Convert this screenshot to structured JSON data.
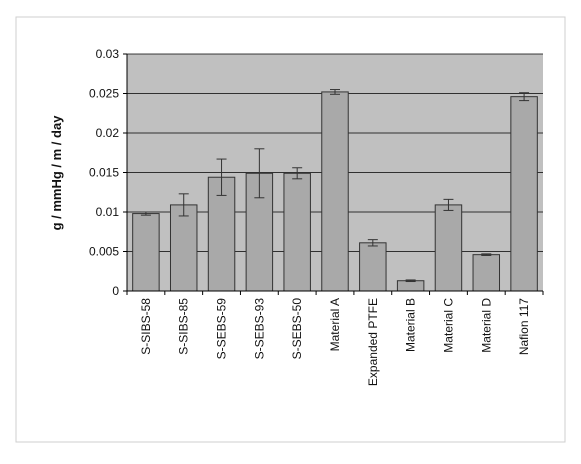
{
  "chart_data": {
    "type": "bar",
    "title": "",
    "xlabel": "",
    "ylabel": "g / mmHg / m / day",
    "ylim": [
      0,
      0.03
    ],
    "yticks": [
      0,
      0.005,
      0.01,
      0.015,
      0.02,
      0.025,
      0.03
    ],
    "ytick_labels": [
      "0",
      "0.005",
      "0.01",
      "0.015",
      "0.02",
      "0.025",
      "0.03"
    ],
    "grid": "horizontal",
    "legend": "none",
    "categories": [
      "S-SIBS-58",
      "S-SIBS-85",
      "S-SEBS-59",
      "S-SEBS-93",
      "S-SEBS-50",
      "Material A",
      "Expanded PTFE",
      "Material B",
      "Material C",
      "Material D",
      "Nafion 117"
    ],
    "values": [
      0.0098,
      0.0109,
      0.0144,
      0.0149,
      0.0149,
      0.0252,
      0.0061,
      0.0013,
      0.0109,
      0.0046,
      0.0246
    ],
    "errors": [
      0.0002,
      0.0014,
      0.0023,
      0.0031,
      0.0007,
      0.0003,
      0.0004,
      0.0001,
      0.0007,
      0.0001,
      0.0005
    ],
    "colors": {
      "bar_fill": "#a9a9a9",
      "bar_stroke": "#333333",
      "plot_area": "#c0c0c0",
      "grid": "#000000",
      "frame": "#cfcfcf"
    }
  }
}
